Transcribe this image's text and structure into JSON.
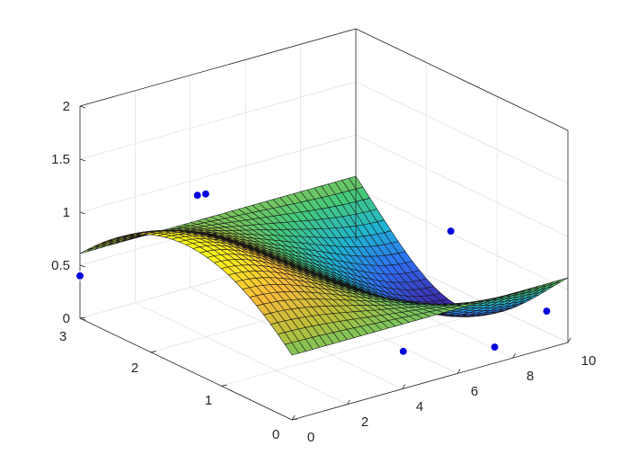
{
  "chart_data": {
    "type": "surface3d",
    "title": "",
    "xlabel": "",
    "ylabel": "",
    "zlabel": "",
    "xlim": [
      0,
      10
    ],
    "ylim": [
      0,
      3
    ],
    "zlim": [
      0,
      2
    ],
    "x_ticks": [
      0,
      2,
      4,
      6,
      8,
      10
    ],
    "y_ticks": [
      0,
      1,
      2,
      3
    ],
    "z_ticks": [
      0,
      0.5,
      1,
      1.5,
      2
    ],
    "x_tick_labels": [
      "0",
      "2",
      "4",
      "6",
      "8",
      "10"
    ],
    "y_tick_labels": [
      "0",
      "1",
      "2",
      "3"
    ],
    "z_tick_labels": [
      "0",
      "0.5",
      "1",
      "1.5",
      "2"
    ],
    "grid": true,
    "box": true,
    "colormap": [
      "#3e26a8",
      "#2f6ff4",
      "#1fb3d2",
      "#45c97a",
      "#b8bf3a",
      "#fbbb3b",
      "#f9fb15"
    ],
    "surface": {
      "x_range": [
        0,
        10
      ],
      "y_range": [
        0,
        3
      ],
      "x_count": 41,
      "y_count": 31,
      "surface_model": "saddle: z approx. 0.55 + 0.6*sin(y)*cos(0.6*x) style shape, low near the center, raised along the x-edges"
    },
    "scatter": {
      "name": "",
      "color": "#0000dd",
      "points": [
        {
          "x": 0.0,
          "y": 3.0,
          "z": 0.4
        },
        {
          "x": 0.2,
          "y": 1.3,
          "z": 1.7
        },
        {
          "x": 4.0,
          "y": 2.9,
          "z": 0.9
        },
        {
          "x": 10.0,
          "y": 0.3,
          "z": 0.2
        },
        {
          "x": 4.8,
          "y": 0.3,
          "z": 0.2
        },
        {
          "x": 7.6,
          "y": 0.1,
          "z": 0.1
        },
        {
          "x": 9.6,
          "y": 1.5,
          "z": 0.6
        }
      ]
    }
  }
}
